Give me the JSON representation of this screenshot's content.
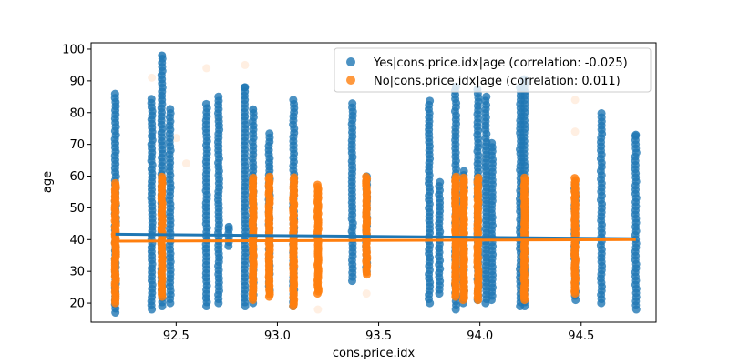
{
  "chart_data": {
    "type": "scatter",
    "xlabel": "cons.price.idx",
    "ylabel": "age",
    "xlim": [
      92.08,
      94.87
    ],
    "ylim": [
      14,
      102
    ],
    "xticks": [
      92.5,
      93.0,
      93.5,
      94.0,
      94.5
    ],
    "xtick_labels": [
      "92.5",
      "93.0",
      "93.5",
      "94.0",
      "94.5"
    ],
    "yticks": [
      20,
      30,
      40,
      50,
      60,
      70,
      80,
      90,
      100
    ],
    "ytick_labels": [
      "20",
      "30",
      "40",
      "50",
      "60",
      "70",
      "80",
      "90",
      "100"
    ],
    "legend_position": "top-right",
    "grid": false,
    "series": [
      {
        "name": "Yes|cons.price.idx|age (correlation: -0.025)",
        "color": "#1f77b4",
        "columns": [
          {
            "x": 92.2,
            "min": 17,
            "max": 87
          },
          {
            "x": 92.38,
            "min": 18,
            "max": 85
          },
          {
            "x": 92.43,
            "min": 19,
            "max": 98
          },
          {
            "x": 92.47,
            "min": 20,
            "max": 82
          },
          {
            "x": 92.65,
            "min": 19,
            "max": 83
          },
          {
            "x": 92.71,
            "min": 20,
            "max": 85
          },
          {
            "x": 92.76,
            "min": 38,
            "max": 44
          },
          {
            "x": 92.84,
            "min": 19,
            "max": 88
          },
          {
            "x": 92.88,
            "min": 20,
            "max": 81
          },
          {
            "x": 92.96,
            "min": 24,
            "max": 74
          },
          {
            "x": 93.08,
            "min": 19,
            "max": 85
          },
          {
            "x": 93.37,
            "min": 27,
            "max": 83
          },
          {
            "x": 93.44,
            "min": 30,
            "max": 60
          },
          {
            "x": 93.75,
            "min": 20,
            "max": 84
          },
          {
            "x": 93.8,
            "min": 23,
            "max": 59
          },
          {
            "x": 93.88,
            "min": 18,
            "max": 89
          },
          {
            "x": 93.92,
            "min": 20,
            "max": 62
          },
          {
            "x": 93.99,
            "min": 21,
            "max": 88
          },
          {
            "x": 94.03,
            "min": 20,
            "max": 86
          },
          {
            "x": 94.06,
            "min": 21,
            "max": 71
          },
          {
            "x": 94.2,
            "min": 19,
            "max": 89
          },
          {
            "x": 94.22,
            "min": 19,
            "max": 91
          },
          {
            "x": 94.47,
            "min": 21,
            "max": 58
          },
          {
            "x": 94.6,
            "min": 20,
            "max": 81
          },
          {
            "x": 94.77,
            "min": 18,
            "max": 73
          }
        ],
        "outliers": [
          {
            "x": 92.43,
            "y": 98
          },
          {
            "x": 92.84,
            "y": 88
          },
          {
            "x": 92.88,
            "y": 81
          },
          {
            "x": 94.77,
            "y": 73
          },
          {
            "x": 92.76,
            "y": 44
          }
        ],
        "trend": [
          [
            92.2,
            41.7
          ],
          [
            94.77,
            40.3
          ]
        ]
      },
      {
        "name": "No|cons.price.idx|age (correlation: 0.011)",
        "color": "#ff7f0e",
        "columns": [
          {
            "x": 92.2,
            "min": 20,
            "max": 58
          },
          {
            "x": 92.43,
            "min": 22,
            "max": 60
          },
          {
            "x": 92.88,
            "min": 21,
            "max": 60
          },
          {
            "x": 92.96,
            "min": 22,
            "max": 60
          },
          {
            "x": 93.08,
            "min": 19,
            "max": 60
          },
          {
            "x": 93.2,
            "min": 23,
            "max": 58
          },
          {
            "x": 93.44,
            "min": 29,
            "max": 60
          },
          {
            "x": 93.88,
            "min": 22,
            "max": 60
          },
          {
            "x": 93.92,
            "min": 21,
            "max": 60
          },
          {
            "x": 93.99,
            "min": 21,
            "max": 60
          },
          {
            "x": 94.22,
            "min": 21,
            "max": 60
          },
          {
            "x": 94.47,
            "min": 23,
            "max": 60
          }
        ],
        "faint_outliers": [
          {
            "x": 92.38,
            "y": 91
          },
          {
            "x": 92.84,
            "y": 95
          },
          {
            "x": 92.65,
            "y": 94
          },
          {
            "x": 92.5,
            "y": 72
          },
          {
            "x": 92.55,
            "y": 64
          },
          {
            "x": 92.88,
            "y": 66
          },
          {
            "x": 93.2,
            "y": 18
          },
          {
            "x": 93.44,
            "y": 23
          },
          {
            "x": 94.47,
            "y": 84
          },
          {
            "x": 94.47,
            "y": 74
          },
          {
            "x": 94.22,
            "y": 88
          },
          {
            "x": 93.88,
            "y": 74
          },
          {
            "x": 92.71,
            "y": 78
          },
          {
            "x": 94.03,
            "y": 66
          },
          {
            "x": 93.8,
            "y": 57
          }
        ],
        "trend": [
          [
            92.2,
            39.5
          ],
          [
            94.77,
            40.0
          ]
        ]
      }
    ]
  }
}
